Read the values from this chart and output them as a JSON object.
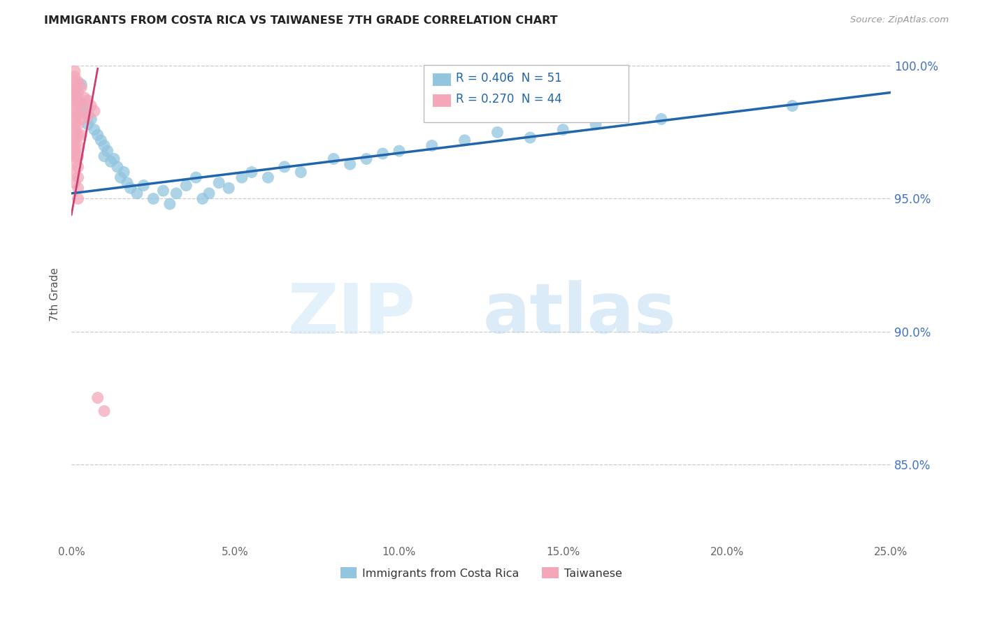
{
  "title": "IMMIGRANTS FROM COSTA RICA VS TAIWANESE 7TH GRADE CORRELATION CHART",
  "source": "Source: ZipAtlas.com",
  "ylabel": "7th Grade",
  "legend_label1": "Immigrants from Costa Rica",
  "legend_label2": "Taiwanese",
  "R1": 0.406,
  "N1": 51,
  "R2": 0.27,
  "N2": 44,
  "color_blue": "#92c5de",
  "color_pink": "#f4a7b9",
  "line_blue": "#2166ac",
  "line_pink": "#c94070",
  "blue_points": [
    [
      0.001,
      0.99
    ],
    [
      0.002,
      0.988
    ],
    [
      0.003,
      0.986
    ],
    [
      0.004,
      0.984
    ],
    [
      0.005,
      0.982
    ],
    [
      0.005,
      0.978
    ],
    [
      0.006,
      0.98
    ],
    [
      0.007,
      0.976
    ],
    [
      0.008,
      0.974
    ],
    [
      0.009,
      0.972
    ],
    [
      0.01,
      0.97
    ],
    [
      0.01,
      0.966
    ],
    [
      0.011,
      0.968
    ],
    [
      0.012,
      0.964
    ],
    [
      0.013,
      0.965
    ],
    [
      0.014,
      0.962
    ],
    [
      0.015,
      0.958
    ],
    [
      0.016,
      0.96
    ],
    [
      0.017,
      0.956
    ],
    [
      0.018,
      0.954
    ],
    [
      0.02,
      0.952
    ],
    [
      0.022,
      0.955
    ],
    [
      0.025,
      0.95
    ],
    [
      0.028,
      0.953
    ],
    [
      0.03,
      0.948
    ],
    [
      0.032,
      0.952
    ],
    [
      0.035,
      0.955
    ],
    [
      0.038,
      0.958
    ],
    [
      0.04,
      0.95
    ],
    [
      0.042,
      0.952
    ],
    [
      0.045,
      0.956
    ],
    [
      0.048,
      0.954
    ],
    [
      0.052,
      0.958
    ],
    [
      0.055,
      0.96
    ],
    [
      0.06,
      0.958
    ],
    [
      0.065,
      0.962
    ],
    [
      0.07,
      0.96
    ],
    [
      0.08,
      0.965
    ],
    [
      0.085,
      0.963
    ],
    [
      0.09,
      0.965
    ],
    [
      0.095,
      0.967
    ],
    [
      0.1,
      0.968
    ],
    [
      0.11,
      0.97
    ],
    [
      0.12,
      0.972
    ],
    [
      0.13,
      0.975
    ],
    [
      0.14,
      0.973
    ],
    [
      0.15,
      0.976
    ],
    [
      0.16,
      0.978
    ],
    [
      0.18,
      0.98
    ],
    [
      0.22,
      0.985
    ],
    [
      0.003,
      0.993
    ]
  ],
  "pink_points": [
    [
      0.001,
      0.998
    ],
    [
      0.001,
      0.996
    ],
    [
      0.001,
      0.994
    ],
    [
      0.001,
      0.992
    ],
    [
      0.001,
      0.99
    ],
    [
      0.001,
      0.988
    ],
    [
      0.001,
      0.986
    ],
    [
      0.001,
      0.984
    ],
    [
      0.001,
      0.982
    ],
    [
      0.001,
      0.98
    ],
    [
      0.001,
      0.978
    ],
    [
      0.001,
      0.976
    ],
    [
      0.001,
      0.974
    ],
    [
      0.001,
      0.972
    ],
    [
      0.001,
      0.97
    ],
    [
      0.001,
      0.968
    ],
    [
      0.001,
      0.966
    ],
    [
      0.001,
      0.964
    ],
    [
      0.001,
      0.96
    ],
    [
      0.001,
      0.956
    ],
    [
      0.002,
      0.994
    ],
    [
      0.002,
      0.99
    ],
    [
      0.002,
      0.986
    ],
    [
      0.002,
      0.982
    ],
    [
      0.002,
      0.978
    ],
    [
      0.002,
      0.974
    ],
    [
      0.002,
      0.97
    ],
    [
      0.002,
      0.966
    ],
    [
      0.002,
      0.962
    ],
    [
      0.002,
      0.958
    ],
    [
      0.002,
      0.954
    ],
    [
      0.002,
      0.95
    ],
    [
      0.003,
      0.992
    ],
    [
      0.003,
      0.986
    ],
    [
      0.003,
      0.98
    ],
    [
      0.003,
      0.974
    ],
    [
      0.004,
      0.988
    ],
    [
      0.004,
      0.982
    ],
    [
      0.005,
      0.987
    ],
    [
      0.005,
      0.981
    ],
    [
      0.006,
      0.985
    ],
    [
      0.007,
      0.983
    ],
    [
      0.008,
      0.875
    ],
    [
      0.01,
      0.87
    ]
  ],
  "xlim": [
    0.0,
    0.25
  ],
  "ylim": [
    0.82,
    1.008
  ],
  "ytick_vals": [
    0.85,
    0.9,
    0.95,
    1.0
  ],
  "xtick_vals": [
    0.0,
    0.05,
    0.1,
    0.15,
    0.2,
    0.25
  ]
}
